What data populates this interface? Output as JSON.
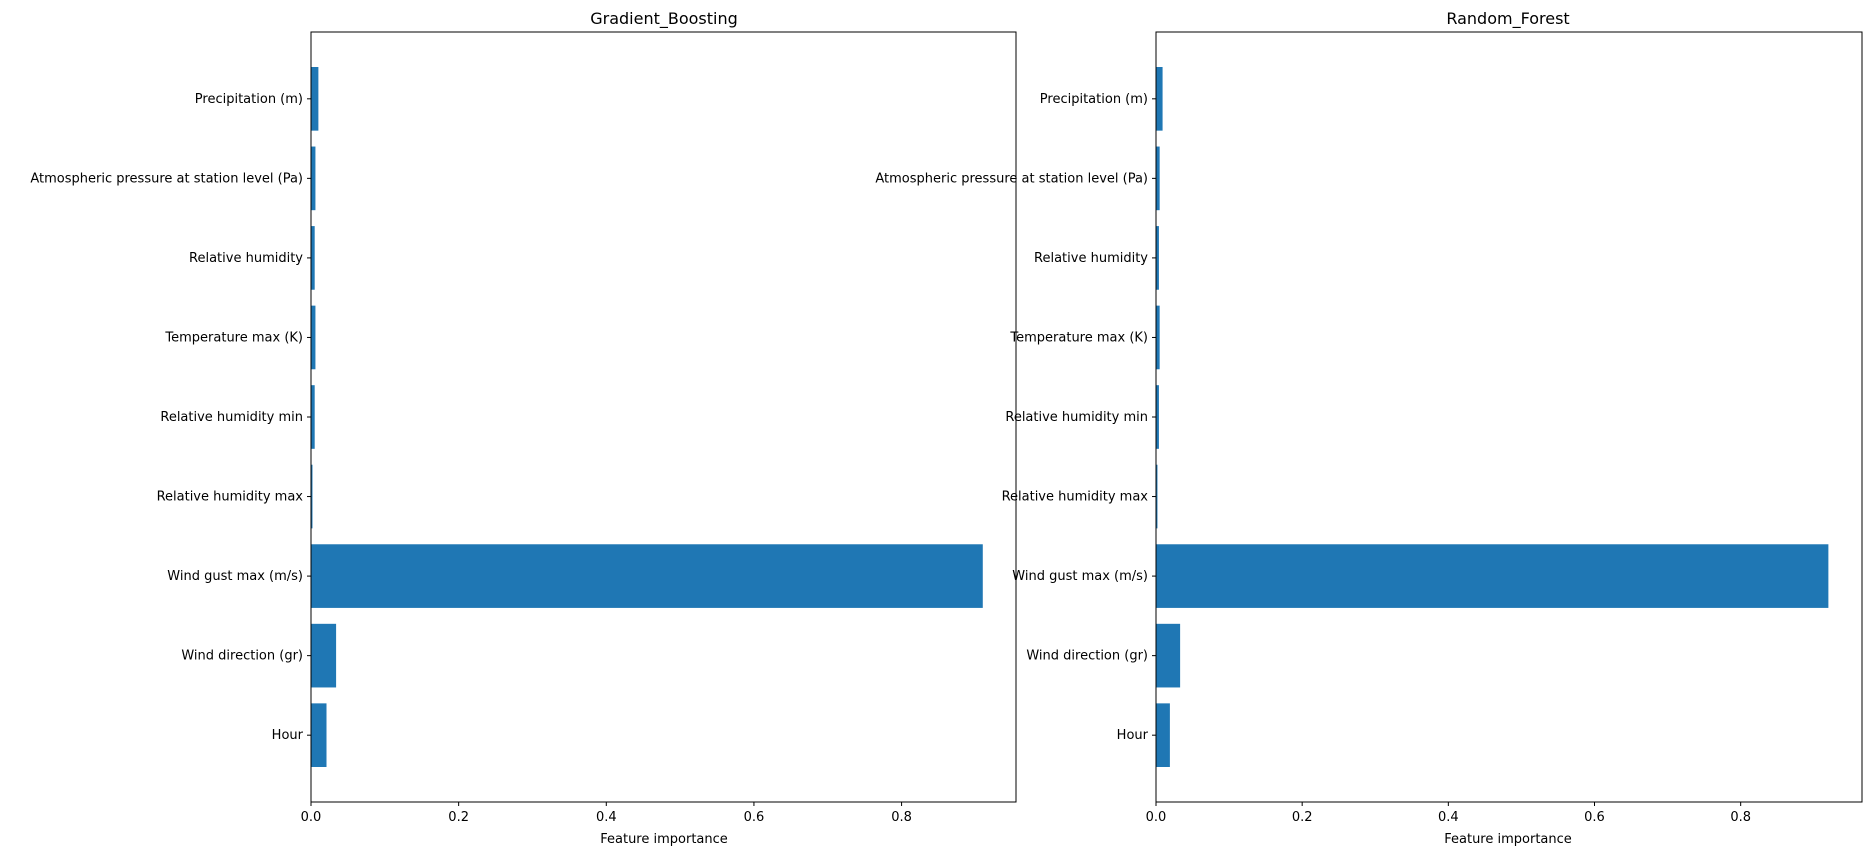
{
  "chart_data": [
    {
      "type": "bar",
      "orientation": "horizontal",
      "title": "Gradient_Boosting",
      "xlabel": "Feature importance",
      "ylabel": "",
      "xlim": [
        0,
        0.955
      ],
      "xticks": [
        "0.0",
        "0.2",
        "0.4",
        "0.6",
        "0.8"
      ],
      "grid": false,
      "categories": [
        "Hour",
        "Wind direction (gr)",
        "Wind gust max (m/s)",
        "Relative humidity max",
        "Relative humidity min",
        "Temperature max (K)",
        "Relative humidity",
        "Atmospheric pressure at station level (Pa)",
        "Precipitation (m)"
      ],
      "values": [
        0.021,
        0.034,
        0.91,
        0.002,
        0.005,
        0.006,
        0.005,
        0.006,
        0.01
      ],
      "color": "#1f77b4"
    },
    {
      "type": "bar",
      "orientation": "horizontal",
      "title": "Random_Forest",
      "xlabel": "Feature importance",
      "ylabel": "",
      "xlim": [
        0,
        0.966
      ],
      "xticks": [
        "0.0",
        "0.2",
        "0.4",
        "0.6",
        "0.8"
      ],
      "grid": false,
      "categories": [
        "Hour",
        "Wind direction (gr)",
        "Wind gust max (m/s)",
        "Relative humidity max",
        "Relative humidity min",
        "Temperature max (K)",
        "Relative humidity",
        "Atmospheric pressure at station level (Pa)",
        "Precipitation (m)"
      ],
      "values": [
        0.019,
        0.033,
        0.92,
        0.002,
        0.004,
        0.005,
        0.004,
        0.005,
        0.009
      ],
      "color": "#1f77b4"
    }
  ]
}
